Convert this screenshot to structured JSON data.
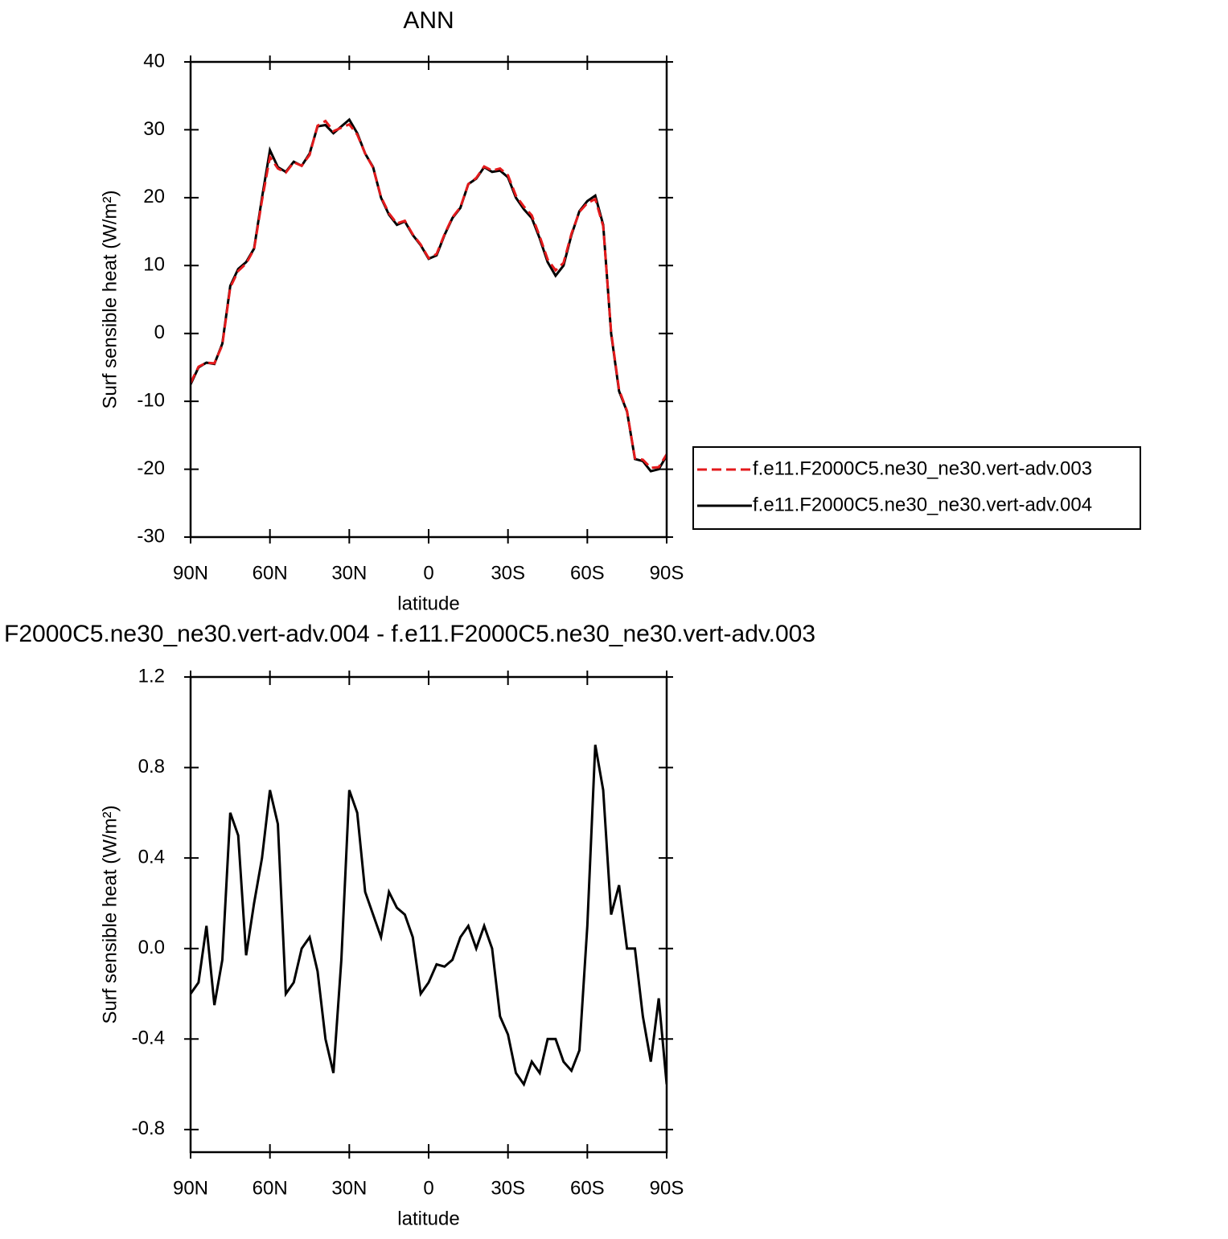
{
  "chart_data": [
    {
      "type": "line",
      "title": "ANN",
      "xlabel": "latitude",
      "ylabel": "Surf sensible heat (W/m²)",
      "x": [
        90,
        87,
        84,
        81,
        78,
        75,
        72,
        69,
        66,
        63,
        60,
        57,
        54,
        51,
        48,
        45,
        42,
        39,
        36,
        33,
        30,
        27,
        24,
        21,
        18,
        15,
        12,
        9,
        6,
        3,
        0,
        -3,
        -6,
        -9,
        -12,
        -15,
        -18,
        -21,
        -24,
        -27,
        -30,
        -33,
        -36,
        -39,
        -42,
        -45,
        -48,
        -51,
        -54,
        -57,
        -60,
        -63,
        -66,
        -69,
        -72,
        -75,
        -78,
        -81,
        -84,
        -87,
        -90
      ],
      "xlim": [
        90,
        -90
      ],
      "xticks": [
        {
          "value": 90,
          "label": "90N"
        },
        {
          "value": 60,
          "label": "60N"
        },
        {
          "value": 30,
          "label": "30N"
        },
        0,
        {
          "value": -30,
          "label": "30S"
        },
        {
          "value": -60,
          "label": "60S"
        },
        {
          "value": -90,
          "label": "90S"
        }
      ],
      "ylim": [
        -30,
        40
      ],
      "yticks": [
        -30,
        -20,
        -10,
        0,
        10,
        20,
        30,
        40
      ],
      "legend": "right",
      "series": [
        {
          "name": "f.e11.F2000C5.ne30_ne30.vert-adv.003",
          "color": "#e31a1c",
          "line_style": "dashed",
          "values": [
            -7.3,
            -4.9,
            -4.3,
            -4.4,
            -1.7,
            6.8,
            9.2,
            10.3,
            12.4,
            19.6,
            26,
            24.3,
            23.7,
            25.2,
            24.7,
            26.3,
            30.6,
            31.3,
            29.8,
            30.3,
            30.8,
            29.3,
            26.5,
            24.4,
            20.1,
            17.7,
            16.2,
            16.6,
            14.6,
            13.1,
            11.1,
            11.7,
            14.6,
            17.1,
            18.6,
            22,
            22.9,
            24.6,
            24,
            24.3,
            23.3,
            20.3,
            18.7,
            17.4,
            14.3,
            10.9,
            9.3,
            10.4,
            14.7,
            17.9,
            19.2,
            19.8,
            15.8,
            0.2,
            -8.3,
            -11.4,
            -18.4,
            -18.6,
            -19.8,
            -19.7,
            -17.8
          ]
        },
        {
          "name": "f.e11.F2000C5.ne30_ne30.vert-adv.004",
          "color": "#000000",
          "line_style": "solid",
          "values": [
            -7.5,
            -5,
            -4.3,
            -4.5,
            -1.5,
            7,
            9.5,
            10.5,
            12.5,
            20,
            27,
            24.5,
            23.8,
            25.3,
            24.7,
            26.5,
            30.5,
            30.7,
            29.5,
            30.5,
            31.5,
            29.5,
            26.5,
            24.5,
            20,
            17.5,
            16,
            16.5,
            14.5,
            13,
            11,
            11.5,
            14.5,
            17,
            18.5,
            22,
            22.8,
            24.5,
            23.8,
            24,
            23,
            20,
            18.3,
            17,
            14,
            10.5,
            8.5,
            10,
            14.5,
            18,
            19.5,
            20.3,
            16,
            0,
            -8.5,
            -11.5,
            -18.5,
            -18.8,
            -20.3,
            -20,
            -18
          ]
        }
      ]
    },
    {
      "type": "line",
      "title": "F2000C5.ne30_ne30.vert-adv.004 - f.e11.F2000C5.ne30_ne30.vert-adv.003",
      "xlabel": "latitude",
      "ylabel": "Surf sensible heat (W/m²)",
      "x": [
        90,
        87,
        84,
        81,
        78,
        75,
        72,
        69,
        66,
        63,
        60,
        57,
        54,
        51,
        48,
        45,
        42,
        39,
        36,
        33,
        30,
        27,
        24,
        21,
        18,
        15,
        12,
        9,
        6,
        3,
        0,
        -3,
        -6,
        -9,
        -12,
        -15,
        -18,
        -21,
        -24,
        -27,
        -30,
        -33,
        -36,
        -39,
        -42,
        -45,
        -48,
        -51,
        -54,
        -57,
        -60,
        -63,
        -66,
        -69,
        -72,
        -75,
        -78,
        -81,
        -84,
        -87,
        -90
      ],
      "xlim": [
        90,
        -90
      ],
      "xticks": [
        {
          "value": 90,
          "label": "90N"
        },
        {
          "value": 60,
          "label": "60N"
        },
        {
          "value": 30,
          "label": "30N"
        },
        0,
        {
          "value": -30,
          "label": "30S"
        },
        {
          "value": -60,
          "label": "60S"
        },
        {
          "value": -90,
          "label": "90S"
        }
      ],
      "ylim": [
        -0.9,
        1.2
      ],
      "yticks": [
        -0.8,
        -0.4,
        {
          "value": 0,
          "label": "0.0"
        },
        0.4,
        0.8,
        1.2
      ],
      "series": [
        {
          "color": "#000000",
          "line_style": "solid",
          "values": [
            -0.2,
            -0.15,
            0.1,
            -0.25,
            -0.05,
            0.6,
            0.5,
            -0.03,
            0.2,
            0.4,
            0.7,
            0.55,
            -0.2,
            -0.15,
            0,
            0.05,
            -0.1,
            -0.4,
            -0.55,
            -0.05,
            0.7,
            0.6,
            0.25,
            0.15,
            0.05,
            0.25,
            0.18,
            0.15,
            0.05,
            -0.2,
            -0.15,
            -0.07,
            -0.08,
            -0.05,
            0.05,
            0.1,
            0,
            0.1,
            0,
            -0.3,
            -0.38,
            -0.55,
            -0.6,
            -0.5,
            -0.55,
            -0.4,
            -0.4,
            -0.5,
            -0.54,
            -0.45,
            0.1,
            0.9,
            0.7,
            0.15,
            0.28,
            0,
            0,
            -0.3,
            -0.5,
            -0.22,
            -0.6
          ]
        }
      ]
    }
  ]
}
